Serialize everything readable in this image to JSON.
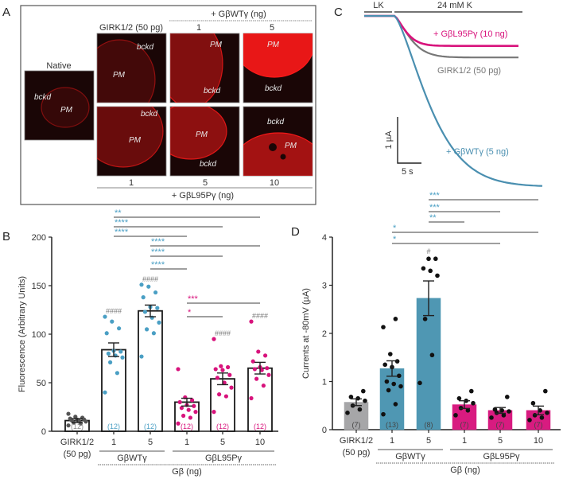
{
  "panel_a": {
    "letter": "A",
    "native_label": "Native",
    "girk_label": "GIRK1/2 (50 pg)",
    "wt_header": "+ GβWTγ (ng)",
    "wt_doses": [
      "1",
      "5"
    ],
    "l95p_header": "+ GβL95Pγ (ng)",
    "l95p_doses": [
      "1",
      "5",
      "10"
    ],
    "pm_label": "PM",
    "bckd_label": "bckd",
    "image_color": "#ff1a1a"
  },
  "chart_data": [
    {
      "panel": "B",
      "type": "bar",
      "ylabel": "Fluorescence (Arbitrary Units)",
      "xlabel": "Gβ (ng)",
      "ylim": [
        0,
        200
      ],
      "yticks": [
        0,
        50,
        100,
        150,
        200
      ],
      "categories": [
        "GIRK1/2 (50 pg)",
        "1",
        "5",
        "1",
        "5",
        "10"
      ],
      "groups": [
        {
          "label": "GβWTγ",
          "members": [
            1,
            2
          ]
        },
        {
          "label": "GβL95Pγ",
          "members": [
            3,
            4,
            5
          ]
        }
      ],
      "values": [
        11,
        84,
        124,
        30,
        54,
        65
      ],
      "sem": [
        2,
        7,
        6,
        4,
        6,
        6
      ],
      "n_labels": [
        "(12)",
        "(12)",
        "(12)",
        "(12)",
        "(12)",
        "(12)"
      ],
      "bar_fill": [
        "#ffffff",
        "#ffffff",
        "#ffffff",
        "#ffffff",
        "#ffffff",
        "#ffffff"
      ],
      "point_colors": [
        "#555555",
        "#4a9fc4",
        "#4a9fc4",
        "#d8137c",
        "#d8137c",
        "#d8137c"
      ],
      "points": [
        [
          6,
          8,
          9,
          10,
          11,
          11,
          12,
          12,
          13,
          14,
          15,
          18
        ],
        [
          40,
          60,
          71,
          76,
          78,
          80,
          82,
          83,
          101,
          106,
          113,
          118
        ],
        [
          77,
          101,
          105,
          112,
          117,
          123,
          127,
          128,
          138,
          143,
          149,
          151
        ],
        [
          8,
          14,
          16,
          20,
          22,
          24,
          26,
          27,
          30,
          32,
          35,
          64
        ],
        [
          20,
          36,
          38,
          45,
          50,
          55,
          58,
          63,
          64,
          66,
          67,
          95
        ],
        [
          34,
          47,
          54,
          58,
          63,
          64,
          65,
          66,
          72,
          78,
          82,
          113
        ]
      ],
      "hash_marks": [
        null,
        "####",
        "####",
        null,
        "####",
        "####"
      ],
      "significance": [
        {
          "from": 1,
          "to": 5,
          "label": "**",
          "color": "#4a9fc4"
        },
        {
          "from": 1,
          "to": 4,
          "label": "****",
          "color": "#4a9fc4"
        },
        {
          "from": 1,
          "to": 3,
          "label": "****",
          "color": "#4a9fc4"
        },
        {
          "from": 2,
          "to": 5,
          "label": "****",
          "color": "#4a9fc4"
        },
        {
          "from": 2,
          "to": 4,
          "label": "****",
          "color": "#4a9fc4"
        },
        {
          "from": 2,
          "to": 3,
          "label": "****",
          "color": "#4a9fc4"
        },
        {
          "from": 3,
          "to": 5,
          "label": "***",
          "color": "#d8137c"
        },
        {
          "from": 3,
          "to": 4,
          "label": "*",
          "color": "#d8137c"
        }
      ]
    },
    {
      "panel": "C",
      "type": "line",
      "condition_labels": [
        "LK",
        "24 mM K"
      ],
      "scale_bar_y": "1 µA",
      "scale_bar_x": "5 s",
      "series": [
        {
          "name": "+ GβL95Pγ (10 ng)",
          "color": "#d8137c",
          "steady_state_uA": 0.65
        },
        {
          "name": "GIRK1/2 (50 pg)",
          "color": "#777777",
          "steady_state_uA": 0.9
        },
        {
          "name": "+ GβWTγ (5 ng)",
          "color": "#4a8fb0",
          "steady_state_uA": 3.7
        }
      ]
    },
    {
      "panel": "D",
      "type": "bar",
      "ylabel": "Currents at -80mV (µA)",
      "xlabel": "Gβ (ng)",
      "ylim": [
        0,
        4
      ],
      "yticks": [
        0,
        1,
        2,
        3,
        4
      ],
      "categories": [
        "GIRK1/2 (50 pg)",
        "1",
        "5",
        "1",
        "5",
        "10"
      ],
      "groups": [
        {
          "label": "GβWTγ",
          "members": [
            1,
            2
          ]
        },
        {
          "label": "GβL95Pγ",
          "members": [
            3,
            4,
            5
          ]
        }
      ],
      "values": [
        0.57,
        1.27,
        2.73,
        0.52,
        0.4,
        0.4
      ],
      "sem": [
        0.07,
        0.16,
        0.36,
        0.08,
        0.06,
        0.09
      ],
      "n_labels": [
        "(7)",
        "(13)",
        "(8)",
        "(7)",
        "(7)",
        "(7)"
      ],
      "bar_fill": [
        "#a6a6a8",
        "#4f97b3",
        "#4f97b3",
        "#d81b80",
        "#d81b80",
        "#d81b80"
      ],
      "point_colors": [
        "#111111",
        "#111111",
        "#111111",
        "#111111",
        "#111111",
        "#111111"
      ],
      "points": [
        [
          0.35,
          0.42,
          0.5,
          0.6,
          0.65,
          0.68,
          0.8
        ],
        [
          0.32,
          0.53,
          0.82,
          0.9,
          0.95,
          1.0,
          1.12,
          1.3,
          1.35,
          1.42,
          1.57,
          2.13,
          2.3
        ],
        [
          0.97,
          1.55,
          2.3,
          3.2,
          3.3,
          3.35,
          3.55,
          3.55
        ],
        [
          0.3,
          0.4,
          0.45,
          0.55,
          0.6,
          0.65,
          0.8
        ],
        [
          0.25,
          0.3,
          0.35,
          0.38,
          0.4,
          0.42,
          0.68
        ],
        [
          0.2,
          0.25,
          0.3,
          0.35,
          0.4,
          0.55,
          0.8
        ]
      ],
      "hash_marks": [
        null,
        null,
        "#",
        null,
        null,
        null
      ],
      "significance": [
        {
          "from": 2,
          "to": 5,
          "label": "***",
          "color": "#4a9fc4"
        },
        {
          "from": 2,
          "to": 4,
          "label": "***",
          "color": "#4a9fc4"
        },
        {
          "from": 2,
          "to": 3,
          "label": "**",
          "color": "#4a9fc4"
        },
        {
          "from": 1,
          "to": 5,
          "label": "*",
          "color": "#4a9fc4"
        },
        {
          "from": 1,
          "to": 4,
          "label": "*",
          "color": "#4a9fc4"
        }
      ]
    }
  ],
  "letters": {
    "b": "B",
    "c": "C",
    "d": "D"
  }
}
